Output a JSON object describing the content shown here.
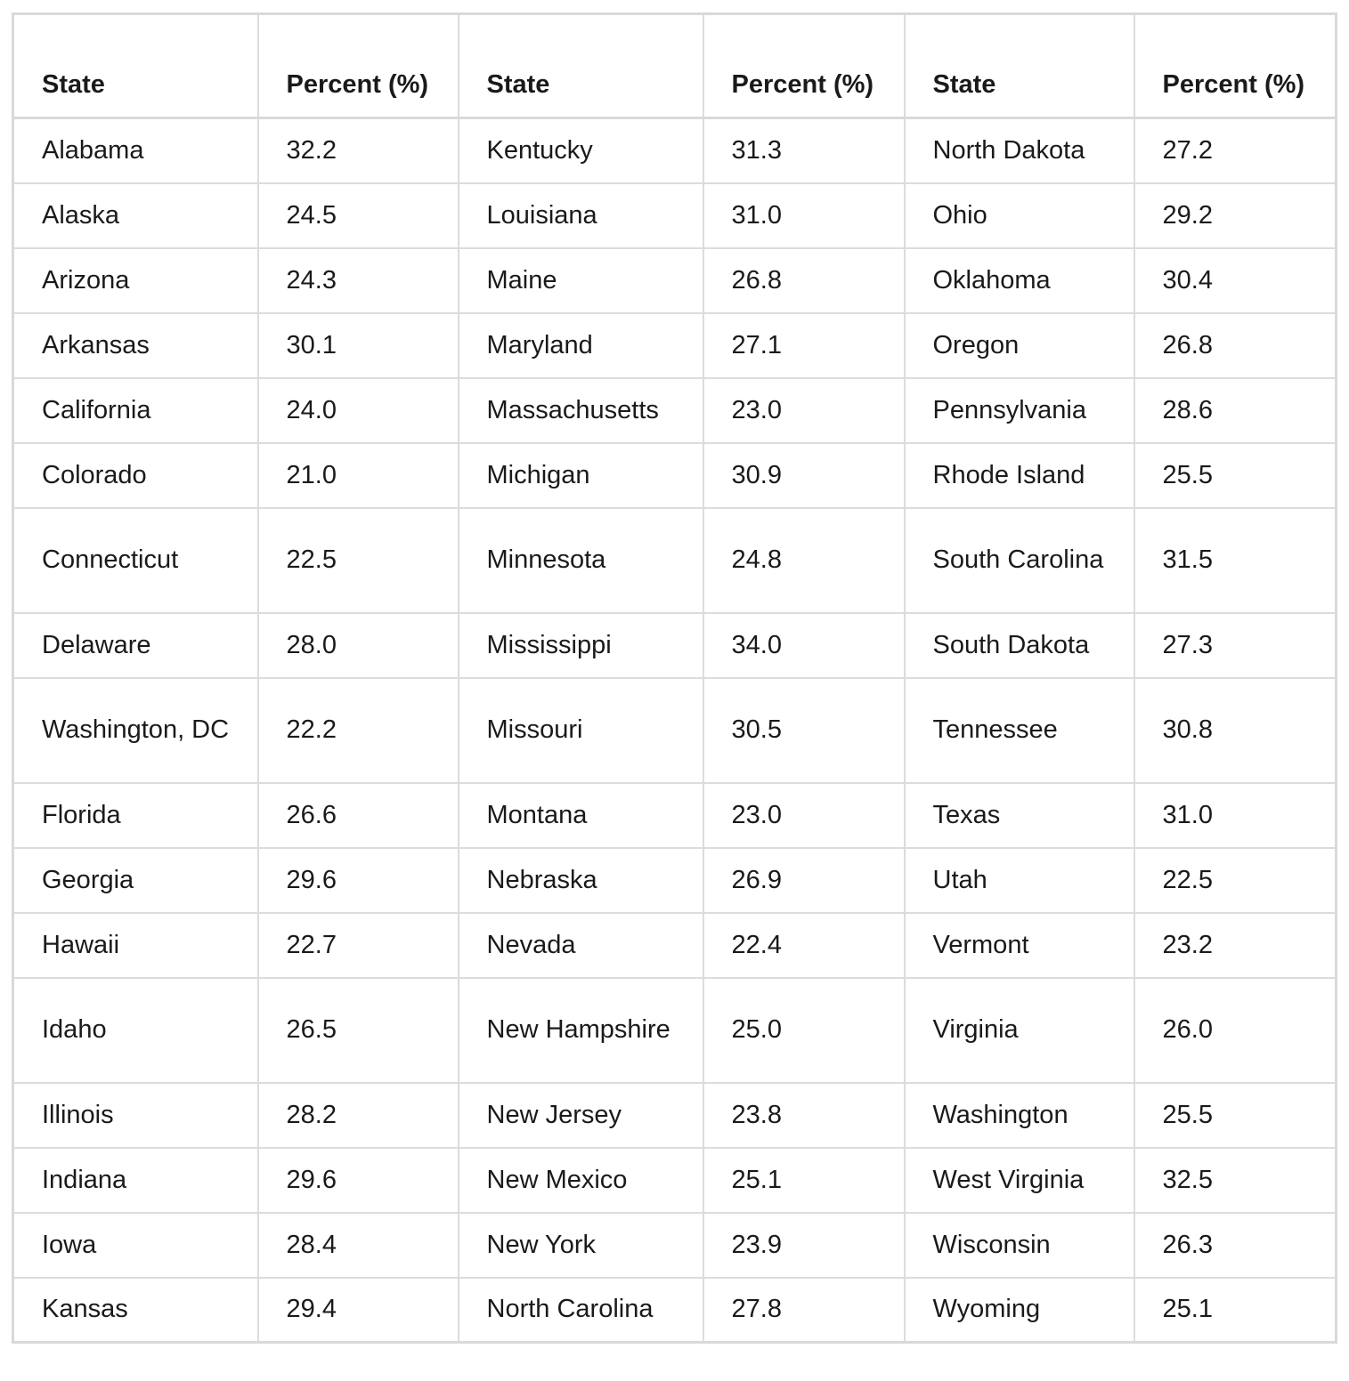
{
  "table": {
    "headers": [
      "State",
      "Percent (%)",
      "State",
      "Percent (%)",
      "State",
      "Percent (%)"
    ],
    "rows": [
      [
        "Alabama",
        "32.2",
        "Kentucky",
        "31.3",
        "North Dakota",
        "27.2"
      ],
      [
        "Alaska",
        "24.5",
        "Louisiana",
        "31.0",
        "Ohio",
        "29.2"
      ],
      [
        "Arizona",
        "24.3",
        "Maine",
        "26.8",
        "Oklahoma",
        "30.4"
      ],
      [
        "Arkansas",
        "30.1",
        "Maryland",
        "27.1",
        "Oregon",
        "26.8"
      ],
      [
        "California",
        "24.0",
        "Massachusetts",
        "23.0",
        "Pennsylvania",
        "28.6"
      ],
      [
        "Colorado",
        "21.0",
        "Michigan",
        "30.9",
        "Rhode Island",
        "25.5"
      ],
      [
        "Connecticut",
        "22.5",
        "Minnesota",
        "24.8",
        "South Carolina",
        "31.5"
      ],
      [
        "Delaware",
        "28.0",
        "Mississippi",
        "34.0",
        "South Dakota",
        "27.3"
      ],
      [
        "Washington, DC",
        "22.2",
        "Missouri",
        "30.5",
        "Tennessee",
        "30.8"
      ],
      [
        "Florida",
        "26.6",
        "Montana",
        "23.0",
        "Texas",
        "31.0"
      ],
      [
        "Georgia",
        "29.6",
        "Nebraska",
        "26.9",
        "Utah",
        "22.5"
      ],
      [
        "Hawaii",
        "22.7",
        "Nevada",
        "22.4",
        "Vermont",
        "23.2"
      ],
      [
        "Idaho",
        "26.5",
        "New Hampshire",
        "25.0",
        "Virginia",
        "26.0"
      ],
      [
        "Illinois",
        "28.2",
        "New Jersey",
        "23.8",
        "Washington",
        "25.5"
      ],
      [
        "Indiana",
        "29.6",
        "New Mexico",
        "25.1",
        "West Virginia",
        "32.5"
      ],
      [
        "Iowa",
        "28.4",
        "New York",
        "23.9",
        "Wisconsin",
        "26.3"
      ],
      [
        "Kansas",
        "29.4",
        "North Carolina",
        "27.8",
        "Wyoming",
        "25.1"
      ]
    ]
  }
}
